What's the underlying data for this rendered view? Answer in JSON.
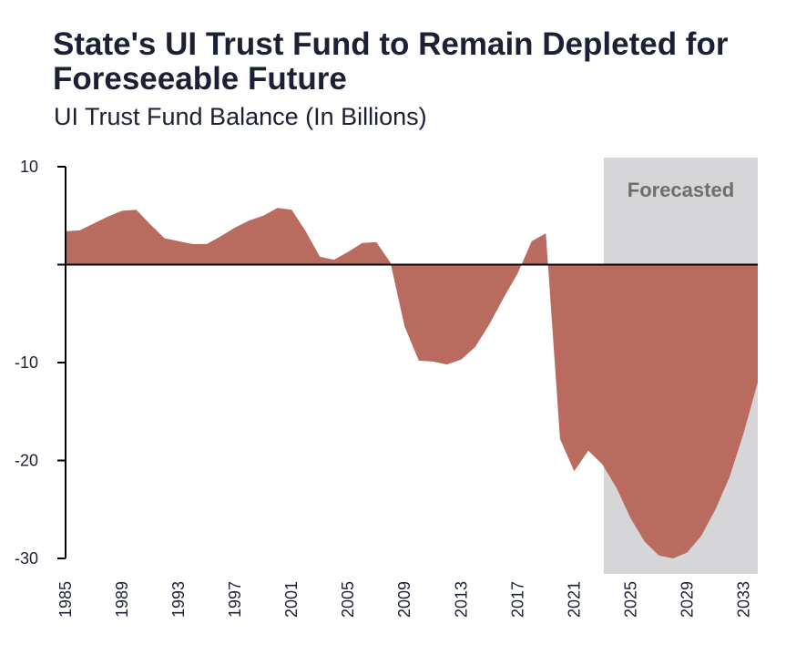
{
  "title": "State's UI Trust Fund to Remain Depleted for Foreseeable Future",
  "subtitle": "UI Trust Fund Balance (In Billions)",
  "colors": {
    "area": "#b86b5e",
    "forecast_band": "#d6d6d8",
    "axis": "#000000",
    "text": "#1b2035"
  },
  "chart_data": {
    "type": "area",
    "title": "State's UI Trust Fund to Remain Depleted for Foreseeable Future",
    "subtitle": "UI Trust Fund Balance (In Billions)",
    "xlabel": "",
    "ylabel": "",
    "ylim": [
      -30,
      10
    ],
    "xlim": [
      1985,
      2034
    ],
    "yticks": [
      10,
      0,
      -10,
      -20,
      -30
    ],
    "ytick_labels": [
      "10",
      "",
      "-10",
      "-20",
      "-30"
    ],
    "xticks": [
      "1985",
      "1989",
      "1993",
      "1997",
      "2001",
      "2005",
      "2009",
      "2013",
      "2017",
      "2021",
      "2025",
      "2029",
      "2033"
    ],
    "forecast": {
      "label": "Forecasted",
      "start": 2024,
      "end": 2034
    },
    "grid": false,
    "x": [
      1985,
      1986,
      1987,
      1988,
      1989,
      1990,
      1991,
      1992,
      1993,
      1994,
      1995,
      1996,
      1997,
      1998,
      1999,
      2000,
      2001,
      2002,
      2003,
      2004,
      2005,
      2006,
      2007,
      2008,
      2009,
      2010,
      2011,
      2012,
      2013,
      2014,
      2015,
      2016,
      2017,
      2018,
      2019,
      2020,
      2021,
      2022,
      2023,
      2024,
      2025,
      2026,
      2027,
      2028,
      2029,
      2030,
      2031,
      2032,
      2033,
      2034
    ],
    "values": [
      3.4,
      3.5,
      4.2,
      4.9,
      5.5,
      5.6,
      4.1,
      2.7,
      2.4,
      2.1,
      2.1,
      2.9,
      3.8,
      4.5,
      5.0,
      5.8,
      5.6,
      3.4,
      0.8,
      0.5,
      1.3,
      2.2,
      2.3,
      0.2,
      -6.3,
      -9.8,
      -9.9,
      -10.2,
      -9.7,
      -8.4,
      -6.1,
      -3.4,
      -0.9,
      2.4,
      3.2,
      -17.8,
      -21.1,
      -19.0,
      -20.4,
      -22.8,
      -25.9,
      -28.3,
      -29.7,
      -30.0,
      -29.4,
      -27.7,
      -25.0,
      -21.7,
      -17.2,
      -12.0
    ]
  }
}
